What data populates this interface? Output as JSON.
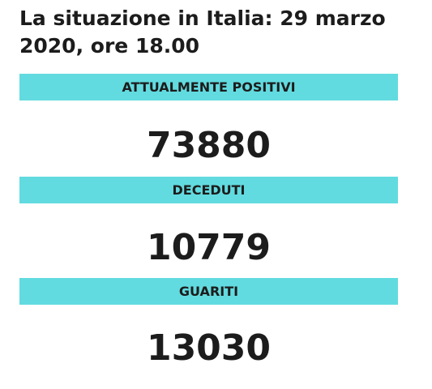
{
  "title": "La situazione in Italia: 29 marzo 2020, ore 18.00",
  "sections": [
    {
      "label": "ATTUALMENTE POSITIVI",
      "value": "73880"
    },
    {
      "label": "DECEDUTI",
      "value": "10779"
    },
    {
      "label": "GUARITI",
      "value": "13030"
    }
  ]
}
